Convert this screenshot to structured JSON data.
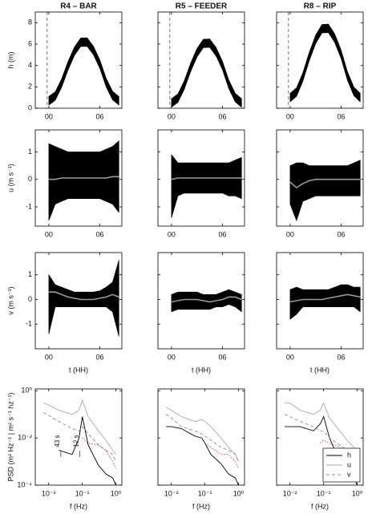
{
  "chart_data": [
    {
      "type": "band",
      "title": "R4 – BAR",
      "ylabel": "h (m)",
      "x": [
        0,
        0.75,
        1.5,
        2.25,
        3,
        3.75,
        4.5,
        5.25,
        6,
        6.75,
        7.5,
        8.25
      ],
      "upper": [
        1.1,
        1.54,
        2.74,
        4.36,
        5.71,
        6.57,
        6.59,
        5.81,
        4.53,
        2.81,
        1.59,
        1.1
      ],
      "lower": [
        0.3,
        0.74,
        1.94,
        3.56,
        4.91,
        5.77,
        5.79,
        5.01,
        3.73,
        2.01,
        0.79,
        0.3
      ],
      "vline": -0.2,
      "xlim": [
        -1.6,
        8.6
      ],
      "ylim": [
        0,
        9
      ],
      "xticks": [
        {
          "value": 0,
          "label": "00"
        },
        {
          "value": 6,
          "label": "06"
        }
      ],
      "yticks": [
        0,
        2,
        4,
        6,
        8
      ]
    },
    {
      "type": "band",
      "title": "R5 – FEEDER",
      "x": [
        0,
        0.75,
        1.5,
        2.25,
        3,
        3.75,
        4.5,
        5.25,
        6,
        6.75,
        7.5,
        8.25
      ],
      "upper": [
        0.9,
        1.34,
        2.56,
        4.22,
        5.59,
        6.46,
        6.49,
        5.69,
        4.39,
        2.64,
        1.4,
        0.9
      ],
      "lower": [
        0.1,
        0.54,
        1.76,
        3.42,
        4.79,
        5.66,
        5.69,
        4.89,
        3.59,
        1.84,
        0.6,
        0.1
      ],
      "vline": -0.2,
      "xlim": [
        -1.6,
        8.6
      ],
      "ylim": [
        0,
        9
      ],
      "xticks": [
        {
          "value": 0,
          "label": "00"
        },
        {
          "value": 6,
          "label": "06"
        }
      ]
    },
    {
      "type": "band",
      "title": "R8 – RIP",
      "x": [
        0,
        0.75,
        1.5,
        2.25,
        3,
        3.75,
        4.5,
        5.25,
        6,
        6.75,
        7.5,
        8.25
      ],
      "upper": [
        1.4,
        1.91,
        3.33,
        5.24,
        6.83,
        7.84,
        7.87,
        6.95,
        5.44,
        3.42,
        1.98,
        1.4
      ],
      "lower": [
        0.6,
        1.11,
        2.53,
        4.44,
        6.03,
        7.04,
        7.07,
        6.15,
        4.64,
        2.62,
        1.18,
        0.6
      ],
      "vline": -0.2,
      "xlim": [
        -1.6,
        8.6
      ],
      "ylim": [
        0,
        9
      ],
      "xticks": [
        {
          "value": 0,
          "label": "00"
        },
        {
          "value": 6,
          "label": "06"
        }
      ]
    },
    {
      "type": "band",
      "ylabel": "u (m s⁻¹)",
      "x": [
        0,
        0.75,
        1.5,
        2.25,
        3,
        3.75,
        4.5,
        5.25,
        6,
        6.75,
        7.5,
        8.25
      ],
      "upper": [
        1.3,
        1.2,
        1.1,
        1.0,
        1.0,
        1.0,
        1.0,
        1.0,
        1.0,
        1.1,
        1.2,
        1.4
      ],
      "lower": [
        -1.5,
        -0.9,
        -0.8,
        -0.7,
        -0.7,
        -0.7,
        -0.7,
        -0.7,
        -0.7,
        -0.8,
        -0.9,
        -1.2
      ],
      "mean": [
        0,
        0,
        0.05,
        0.05,
        0.05,
        0.05,
        0.05,
        0.05,
        0.05,
        0.05,
        0.1,
        0.1
      ],
      "xlim": [
        -1.6,
        8.6
      ],
      "ylim": [
        -1.7,
        1.8
      ],
      "xticks": [
        {
          "value": 0,
          "label": "00"
        },
        {
          "value": 6,
          "label": "06"
        }
      ],
      "yticks": [
        -1,
        0,
        1
      ]
    },
    {
      "type": "band",
      "x": [
        0,
        0.75,
        1.5,
        2.25,
        3,
        3.75,
        4.5,
        5.25,
        6,
        6.75,
        7.5,
        8.25
      ],
      "upper": [
        0.9,
        0.6,
        0.6,
        0.6,
        0.6,
        0.6,
        0.6,
        0.6,
        0.6,
        0.6,
        0.7,
        0.8
      ],
      "lower": [
        -1.4,
        -0.6,
        -0.5,
        -0.5,
        -0.5,
        -0.5,
        -0.5,
        -0.5,
        -0.5,
        -0.6,
        -0.6,
        -0.7
      ],
      "mean": [
        0,
        0.05,
        0.05,
        0.05,
        0.05,
        0.05,
        0.05,
        0.05,
        0.05,
        0.05,
        0.05,
        0.05
      ],
      "xlim": [
        -1.6,
        8.6
      ],
      "ylim": [
        -1.7,
        1.8
      ],
      "xticks": [
        {
          "value": 0,
          "label": "00"
        },
        {
          "value": 6,
          "label": "06"
        }
      ]
    },
    {
      "type": "band",
      "x": [
        0,
        0.75,
        1.5,
        2.25,
        3,
        3.75,
        4.5,
        5.25,
        6,
        6.75,
        7.5,
        8.25
      ],
      "upper": [
        0.5,
        0.6,
        0.6,
        0.5,
        0.5,
        0.5,
        0.5,
        0.5,
        0.5,
        0.5,
        0.6,
        0.7
      ],
      "lower": [
        -0.9,
        -1.5,
        -0.8,
        -0.7,
        -0.6,
        -0.6,
        -0.6,
        -0.6,
        -0.6,
        -0.6,
        -0.6,
        -0.6
      ],
      "mean": [
        -0.1,
        -0.3,
        -0.15,
        -0.05,
        0,
        0,
        0,
        0,
        0,
        0,
        0,
        0
      ],
      "xlim": [
        -1.6,
        8.6
      ],
      "ylim": [
        -1.7,
        1.8
      ],
      "xticks": [
        {
          "value": 0,
          "label": "00"
        },
        {
          "value": 6,
          "label": "06"
        }
      ]
    },
    {
      "type": "band",
      "ylabel": "v (m s⁻¹)",
      "xlabel": "t (HH)",
      "x": [
        0,
        0.75,
        1.5,
        2.25,
        3,
        3.75,
        4.5,
        5.25,
        6,
        6.75,
        7.5,
        8.25
      ],
      "upper": [
        1.0,
        0.6,
        0.5,
        0.4,
        0.3,
        0.3,
        0.3,
        0.3,
        0.35,
        0.5,
        0.7,
        1.6
      ],
      "lower": [
        -1.4,
        -0.3,
        -0.3,
        -0.3,
        -0.3,
        -0.3,
        -0.3,
        -0.3,
        -0.3,
        -0.3,
        -0.5,
        -1.5
      ],
      "mean": [
        0.3,
        0.3,
        0.2,
        0.1,
        0.05,
        0,
        0,
        0,
        0.05,
        0.1,
        0.2,
        0.1
      ],
      "xlim": [
        -1.6,
        8.6
      ],
      "ylim": [
        -2,
        1.9
      ],
      "xticks": [
        {
          "value": 0,
          "label": "00"
        },
        {
          "value": 6,
          "label": "06"
        }
      ],
      "yticks": [
        -1,
        0,
        1
      ]
    },
    {
      "type": "band",
      "xlabel": "t (HH)",
      "x": [
        0,
        0.75,
        1.5,
        2.25,
        3,
        3.75,
        4.5,
        5.25,
        6,
        6.75,
        7.5,
        8.25
      ],
      "upper": [
        0.2,
        0.3,
        0.3,
        0.3,
        0.3,
        0.2,
        0.2,
        0.2,
        0.3,
        0.4,
        0.3,
        0.2
      ],
      "lower": [
        -0.5,
        -0.4,
        -0.4,
        -0.4,
        -0.4,
        -0.4,
        -0.4,
        -0.3,
        -0.3,
        -0.2,
        -0.3,
        -0.5
      ],
      "mean": [
        -0.1,
        -0.05,
        0,
        0,
        0,
        -0.05,
        -0.1,
        -0.05,
        0,
        0.1,
        0.1,
        0
      ],
      "xlim": [
        -1.6,
        8.6
      ],
      "ylim": [
        -2,
        1.9
      ],
      "xticks": [
        {
          "value": 0,
          "label": "00"
        },
        {
          "value": 6,
          "label": "06"
        }
      ]
    },
    {
      "type": "band",
      "xlabel": "t (HH)",
      "x": [
        0,
        0.75,
        1.5,
        2.25,
        3,
        3.75,
        4.5,
        5.25,
        6,
        6.75,
        7.5,
        8.25
      ],
      "upper": [
        0.4,
        0.5,
        0.4,
        0.4,
        0.4,
        0.4,
        0.4,
        0.5,
        0.6,
        0.6,
        0.5,
        0.5
      ],
      "lower": [
        -0.8,
        -0.6,
        -0.3,
        -0.3,
        -0.3,
        -0.3,
        -0.3,
        -0.3,
        -0.3,
        -0.3,
        -0.3,
        -0.5
      ],
      "mean": [
        -0.1,
        -0.05,
        0,
        0,
        0,
        0,
        0.05,
        0.1,
        0.15,
        0.2,
        0.15,
        0.1
      ],
      "xlim": [
        -1.6,
        8.6
      ],
      "ylim": [
        -2,
        1.9
      ],
      "xticks": [
        {
          "value": 0,
          "label": "00"
        },
        {
          "value": 6,
          "label": "06"
        }
      ]
    },
    {
      "type": "line",
      "ylabel": "PSD (m² Hz⁻¹ | m² s⁻¹ hz⁻¹)",
      "xlabel": "f (Hz)",
      "xlog": true,
      "ylog": true,
      "x": [
        0.007,
        0.01,
        0.02,
        0.05,
        0.08,
        0.1,
        0.15,
        0.3,
        0.5,
        0.8,
        1
      ],
      "series": [
        {
          "color": "#000000",
          "dash": "solid",
          "values": [
            null,
            null,
            0.003,
            0.002,
            0.01,
            0.08,
            0.005,
            0.0007,
            0.0003,
            0.0002,
            0.0001
          ]
        },
        {
          "color": "#aaaaaa",
          "dash": "solid",
          "values": [
            0.3,
            0.25,
            0.15,
            0.1,
            0.15,
            0.4,
            0.08,
            0.02,
            0.008,
            0.003,
            0.002
          ]
        },
        {
          "color": "#888888",
          "dash": "dashed",
          "values": [
            0.12,
            0.09,
            0.05,
            0.025,
            0.02,
            0.03,
            0.015,
            0.005,
            0.003,
            0.002,
            0.001
          ]
        },
        {
          "color": "#e03030",
          "dash": "dotted",
          "values": [
            null,
            null,
            null,
            null,
            null,
            0.01,
            0.006,
            0.005,
            0.003,
            0.001,
            0.0005
          ]
        }
      ],
      "annotations": [
        {
          "text": "43 s",
          "x": 0.023
        },
        {
          "text": "12 s",
          "x": 0.083
        }
      ],
      "xlim": [
        0.004,
        1.5
      ],
      "ylim": [
        0.0001,
        1.2
      ],
      "xticks": [
        {
          "value": 0.01,
          "label": "10⁻²"
        },
        {
          "value": 0.1,
          "label": "10⁻¹"
        },
        {
          "value": 1,
          "label": "10⁰"
        }
      ],
      "yticks": [
        {
          "value": 0.0001,
          "label": "10⁻⁴"
        },
        {
          "value": 0.01,
          "label": "10⁻²"
        },
        {
          "value": 1,
          "label": "10⁰"
        }
      ]
    },
    {
      "type": "line",
      "xlabel": "f (Hz)",
      "xlog": true,
      "ylog": true,
      "x": [
        0.007,
        0.01,
        0.02,
        0.05,
        0.08,
        0.1,
        0.15,
        0.3,
        0.5,
        0.8,
        1
      ],
      "series": [
        {
          "color": "#000000",
          "dash": "solid",
          "values": [
            0.03,
            0.03,
            0.025,
            0.012,
            0.01,
            0.006,
            0.002,
            0.0008,
            0.0003,
            0.0002,
            0.0001
          ]
        },
        {
          "color": "#aaaaaa",
          "dash": "solid",
          "values": [
            0.2,
            0.15,
            0.08,
            0.05,
            0.06,
            0.05,
            0.03,
            0.01,
            0.004,
            0.002,
            0.001
          ]
        },
        {
          "color": "#888888",
          "dash": "dashed",
          "values": [
            0.1,
            0.07,
            0.03,
            0.02,
            0.015,
            0.012,
            0.008,
            0.004,
            0.003,
            0.002,
            0.001
          ]
        },
        {
          "color": "#e03030",
          "dash": "dotted",
          "values": [
            null,
            null,
            null,
            null,
            null,
            0.006,
            0.004,
            0.002,
            0.002,
            0.001,
            0.0005
          ]
        }
      ],
      "xlim": [
        0.004,
        1.5
      ],
      "ylim": [
        0.0001,
        1.2
      ],
      "xticks": [
        {
          "value": 0.01,
          "label": "10⁻²"
        },
        {
          "value": 0.1,
          "label": "10⁻¹"
        },
        {
          "value": 1,
          "label": "10⁰"
        }
      ]
    },
    {
      "type": "line",
      "xlabel": "f (Hz)",
      "xlog": true,
      "ylog": true,
      "legend": "lower right",
      "x": [
        0.007,
        0.01,
        0.02,
        0.05,
        0.08,
        0.1,
        0.15,
        0.3,
        0.5,
        0.8,
        1
      ],
      "series": [
        {
          "name": "h",
          "color": "#000000",
          "dash": "solid",
          "values": [
            0.03,
            0.03,
            0.03,
            0.02,
            0.04,
            0.08,
            0.01,
            0.001,
            0.0004,
            0.0002,
            0.0001
          ]
        },
        {
          "name": "u",
          "color": "#aaaaaa",
          "dash": "solid",
          "values": [
            0.3,
            0.3,
            0.15,
            0.1,
            0.15,
            0.3,
            0.07,
            0.02,
            0.008,
            0.004,
            0.002
          ]
        },
        {
          "name": "v",
          "color": "#888888",
          "dash": "dashed",
          "values": [
            0.1,
            0.08,
            0.05,
            0.03,
            0.02,
            0.02,
            0.01,
            0.005,
            0.003,
            0.002,
            0.001
          ]
        },
        {
          "color": "#e03030",
          "dash": "dotted",
          "values": [
            null,
            null,
            null,
            null,
            0.006,
            0.008,
            0.006,
            0.004,
            0.002,
            0.001,
            0.0006
          ]
        }
      ],
      "xlim": [
        0.004,
        1.5
      ],
      "ylim": [
        0.0001,
        1.2
      ],
      "xticks": [
        {
          "value": 0.01,
          "label": "10⁻²"
        },
        {
          "value": 0.1,
          "label": "10⁻¹"
        },
        {
          "value": 1,
          "label": "10⁰"
        }
      ]
    }
  ]
}
